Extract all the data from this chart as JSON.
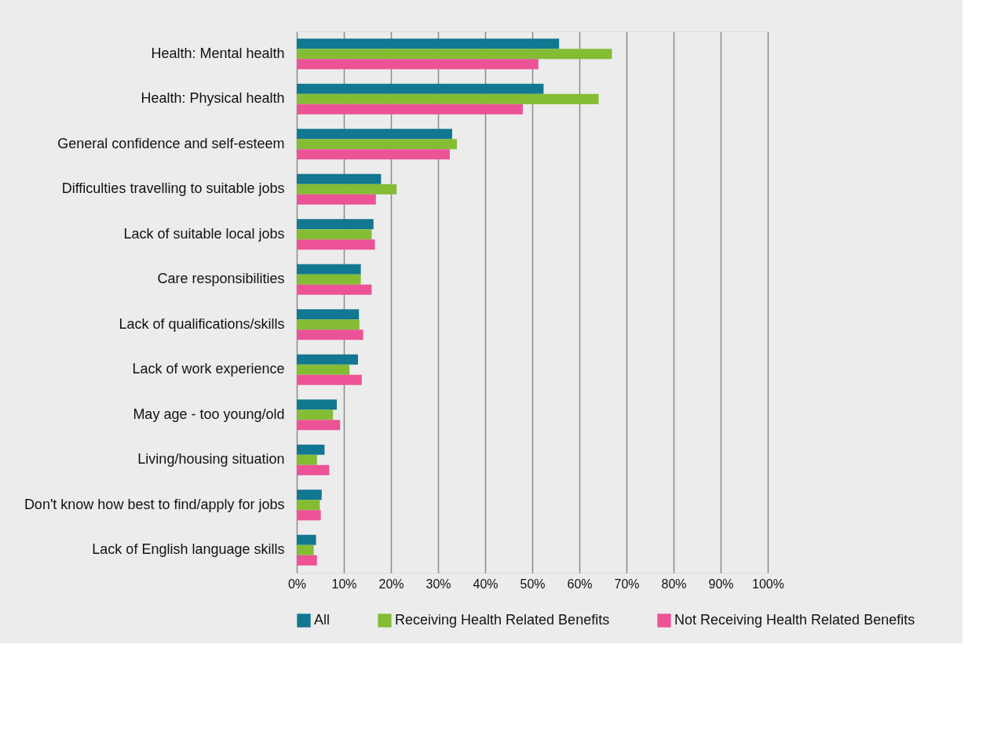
{
  "chart_data": {
    "type": "bar",
    "orientation": "horizontal",
    "categories": [
      "Health: Mental health",
      "Health: Physical health",
      "General confidence and self-esteem",
      "Difficulties travelling to suitable jobs",
      "Lack of suitable local jobs",
      "Care responsibilities",
      "Lack of qualifications/skills",
      "Lack of work experience",
      "May age - too young/old",
      "Living/housing situation",
      "Don't know how best to find/apply for jobs",
      "Lack of English language skills"
    ],
    "series": [
      {
        "name": "All",
        "color": "#127790",
        "values": [
          55.7,
          52.4,
          33.0,
          17.9,
          16.3,
          13.6,
          13.2,
          13.0,
          8.5,
          5.9,
          5.3,
          4.1
        ]
      },
      {
        "name": "Receiving Health Related Benefits",
        "color": "#84bc34",
        "values": [
          66.9,
          64.1,
          34.0,
          21.2,
          15.9,
          13.6,
          13.3,
          11.2,
          7.7,
          4.3,
          4.9,
          3.6
        ]
      },
      {
        "name": "Not Receiving Health Related Benefits",
        "color": "#eb5396",
        "values": [
          51.3,
          48.0,
          32.5,
          16.8,
          16.6,
          15.9,
          14.1,
          13.8,
          9.2,
          6.9,
          5.1,
          4.3
        ]
      }
    ],
    "xlim": [
      0,
      100
    ],
    "xticks": [
      {
        "value": 0,
        "label": "0%"
      },
      {
        "value": 10,
        "label": "10%"
      },
      {
        "value": 20,
        "label": "20%"
      },
      {
        "value": 30,
        "label": "30%"
      },
      {
        "value": 40,
        "label": "40%"
      },
      {
        "value": 50,
        "label": "50%"
      },
      {
        "value": 60,
        "label": "60%"
      },
      {
        "value": 70,
        "label": "70%"
      },
      {
        "value": 80,
        "label": "80%"
      },
      {
        "value": 90,
        "label": "90%"
      },
      {
        "value": 100,
        "label": "100%"
      }
    ],
    "grid": "x",
    "legend": "bottom"
  }
}
